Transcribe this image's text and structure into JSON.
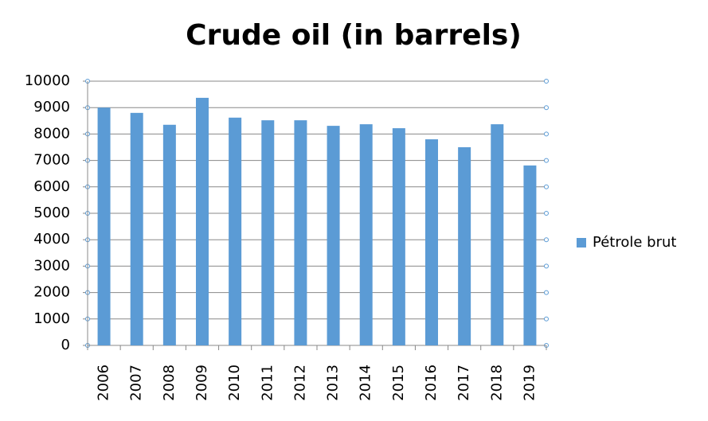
{
  "chart_data": {
    "type": "bar",
    "title": "Crude oil (in barrels)",
    "categories": [
      "2006",
      "2007",
      "2008",
      "2009",
      "2010",
      "2011",
      "2012",
      "2013",
      "2014",
      "2015",
      "2016",
      "2017",
      "2018",
      "2019"
    ],
    "series": [
      {
        "name": "Pétrole brut",
        "color": "#5b9bd5",
        "values": [
          9000,
          8800,
          8350,
          9370,
          8620,
          8520,
          8520,
          8310,
          8370,
          8220,
          7800,
          7500,
          8370,
          6810
        ]
      }
    ],
    "ylim": [
      0,
      10000
    ],
    "yticks": [
      0,
      1000,
      2000,
      3000,
      4000,
      5000,
      6000,
      7000,
      8000,
      9000,
      10000
    ],
    "grid": true,
    "legend": "right"
  }
}
